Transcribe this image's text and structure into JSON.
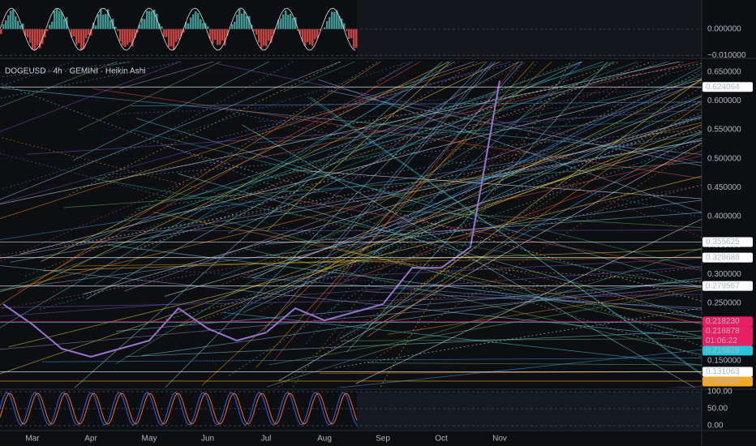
{
  "chart_data": [
    {
      "type": "line",
      "title": "DOGEUSD · 4h · GEMINI · Heikin Ashi",
      "categories": [
        null,
        "Mar",
        null,
        "Apr",
        null,
        "May",
        null,
        "Jun",
        null,
        "Jul",
        null,
        "Aug",
        null,
        "Sep",
        null,
        "Oct",
        null,
        "Nov"
      ],
      "values": [
        0.248,
        0.213,
        0.171,
        0.157,
        0.171,
        0.185,
        0.241,
        0.206,
        0.185,
        0.199,
        0.241,
        0.22,
        0.234,
        0.248,
        0.311,
        0.311,
        0.347,
        0.635
      ],
      "color": "#9575cd",
      "ylim": [
        0.1036,
        0.668
      ],
      "yticks": [
        {
          "value": 0.15,
          "label": "0.150000"
        },
        {
          "value": 0.2,
          "label": "0.200000"
        },
        {
          "value": 0.25,
          "label": "0.250000"
        },
        {
          "value": 0.3,
          "label": "0.300000"
        },
        {
          "value": 0.35,
          "label": "0.350000"
        },
        {
          "value": 0.4,
          "label": "0.400000"
        },
        {
          "value": 0.45,
          "label": "0.450000"
        },
        {
          "value": 0.5,
          "label": "0.500000"
        },
        {
          "value": 0.55,
          "label": "0.550000"
        },
        {
          "value": 0.6,
          "label": "0.600000"
        },
        {
          "value": 0.65,
          "label": "0.650000"
        }
      ],
      "price_labels": [
        {
          "value": 0.624064,
          "label": "0.624064",
          "color": "#ffffff"
        },
        {
          "value": 0.355625,
          "label": "0.355625",
          "color": "#ffffff"
        },
        {
          "value": 0.328688,
          "label": "0.328688",
          "color": "#ffffff"
        },
        {
          "value": 0.279567,
          "label": "0.279567",
          "color": "#ffffff"
        },
        {
          "value": 0.21823,
          "label": "0.218230",
          "color": "#e91e63"
        },
        {
          "value": 0.216878,
          "label": "0.216878",
          "color": "#e91e63",
          "timer": "01:06:22"
        },
        {
          "value": 0.216829,
          "label": "0.216829",
          "color": "#26c6da"
        },
        {
          "value": 0.131063,
          "label": "0.131063",
          "color": "#ffffff"
        },
        {
          "value": 0.114919,
          "label": "0.114919",
          "color": "#f5a623"
        }
      ]
    },
    {
      "type": "line",
      "ylim": [
        -0.0105,
        0.011
      ],
      "yticks": [
        {
          "value": 0,
          "label": "0.000000"
        },
        {
          "value": -0.01,
          "label": "−0.010000"
        }
      ]
    },
    {
      "type": "line",
      "ylim": [
        0,
        100
      ],
      "yticks": [
        {
          "value": 100,
          "label": "100.00"
        },
        {
          "value": 50,
          "label": "50.00"
        },
        {
          "value": 0,
          "label": "0.00"
        }
      ]
    }
  ]
}
